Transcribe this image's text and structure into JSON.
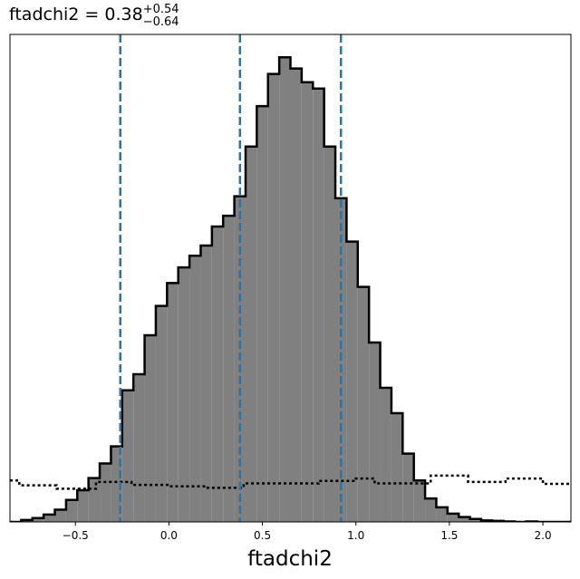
{
  "chart_data": {
    "type": "histogram",
    "title": {
      "param": "ftadchi2",
      "equals": " = ",
      "median": "0.38",
      "plus": "+0.54",
      "minus": "−0.64"
    },
    "xlabel": "ftadchi2",
    "ylabel": "",
    "xlim": [
      -0.85,
      2.15
    ],
    "ylim": [
      0,
      1.0
    ],
    "y_ticks_shown": false,
    "grid": false,
    "x_ticks": [
      {
        "value": -0.5,
        "label": "−0.5"
      },
      {
        "value": 0.0,
        "label": "0.0"
      },
      {
        "value": 0.5,
        "label": "0.5"
      },
      {
        "value": 1.0,
        "label": "1.0"
      },
      {
        "value": 1.5,
        "label": "1.5"
      },
      {
        "value": 2.0,
        "label": "2.0"
      }
    ],
    "bin_start": -0.85,
    "bin_width": 0.06,
    "posterior_counts": [
      0.0,
      0.004,
      0.008,
      0.015,
      0.025,
      0.045,
      0.065,
      0.09,
      0.12,
      0.155,
      0.27,
      0.303,
      0.383,
      0.443,
      0.49,
      0.522,
      0.546,
      0.567,
      0.606,
      0.628,
      0.668,
      0.77,
      0.853,
      0.919,
      0.953,
      0.93,
      0.902,
      0.889,
      0.77,
      0.664,
      0.575,
      0.482,
      0.368,
      0.275,
      0.223,
      0.14,
      0.085,
      0.048,
      0.03,
      0.017,
      0.01,
      0.006,
      0.003,
      0.002,
      0.001,
      0.0,
      0.001,
      0.0,
      0.0,
      0.0
    ],
    "prior_steps": [
      {
        "x": [
          -0.85,
          -0.8
        ],
        "y": 0.085
      },
      {
        "x": [
          -0.8,
          -0.6
        ],
        "y": 0.075
      },
      {
        "x": [
          -0.6,
          -0.39
        ],
        "y": 0.068
      },
      {
        "x": [
          -0.39,
          -0.2
        ],
        "y": 0.082
      },
      {
        "x": [
          -0.2,
          0.0
        ],
        "y": 0.076
      },
      {
        "x": [
          0.0,
          0.2
        ],
        "y": 0.073
      },
      {
        "x": [
          0.2,
          0.4
        ],
        "y": 0.07
      },
      {
        "x": [
          0.4,
          0.8
        ],
        "y": 0.079
      },
      {
        "x": [
          0.8,
          1.0
        ],
        "y": 0.084
      },
      {
        "x": [
          1.0,
          1.1
        ],
        "y": 0.089
      },
      {
        "x": [
          1.1,
          1.4
        ],
        "y": 0.079
      },
      {
        "x": [
          1.4,
          1.6
        ],
        "y": 0.095
      },
      {
        "x": [
          1.6,
          1.8
        ],
        "y": 0.082
      },
      {
        "x": [
          1.8,
          2.0
        ],
        "y": 0.089
      },
      {
        "x": [
          2.0,
          2.15
        ],
        "y": 0.078
      }
    ],
    "quantile_lines": [
      -0.26,
      0.38,
      0.92
    ],
    "colors": {
      "fill": "#808080",
      "edge": "#000000",
      "quantile": "#1f77b4",
      "prior": "#000000"
    }
  }
}
